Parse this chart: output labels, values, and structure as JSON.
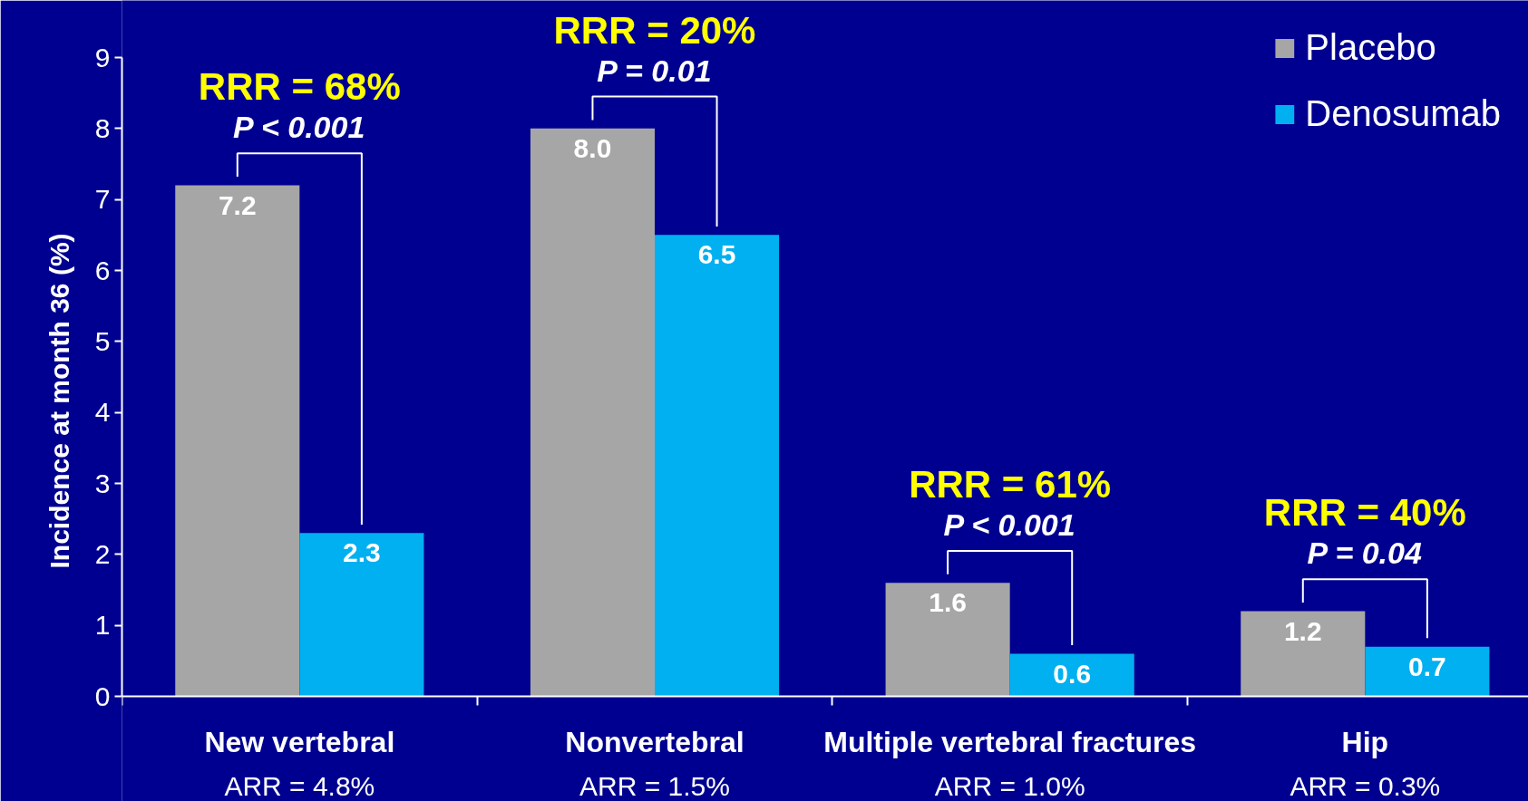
{
  "chart_data": {
    "type": "bar",
    "ylabel": "Incidence at month 36 (%)",
    "categories": [
      "New vertebral",
      "Nonvertebral",
      "Multiple vertebral fractures",
      "Hip"
    ],
    "series": [
      {
        "name": "Placebo",
        "color": "#a6a6a6",
        "values": [
          7.2,
          8.0,
          1.6,
          1.2
        ],
        "value_labels": [
          "7.2",
          "8.0",
          "1.6",
          "1.2"
        ]
      },
      {
        "name": "Denosumab",
        "color": "#00b0f0",
        "values": [
          2.3,
          6.5,
          0.6,
          0.7
        ],
        "value_labels": [
          "2.3",
          "6.5",
          "0.6",
          "0.7"
        ]
      }
    ],
    "ylim": [
      0,
      9
    ],
    "yticks": [
      0,
      1,
      2,
      3,
      4,
      5,
      6,
      7,
      8,
      9
    ],
    "grid": false,
    "legend": "top right",
    "annotations": [
      "RRR = 68%",
      "P < 0.001",
      "RRR = 20%",
      "P = 0.01",
      "RRR = 61%",
      "P < 0.001",
      "RRR = 40%",
      "P = 0.04",
      "ARR = 4.8%",
      "ARR = 1.5%",
      "ARR = 1.0%",
      "ARR = 0.3%"
    ]
  }
}
